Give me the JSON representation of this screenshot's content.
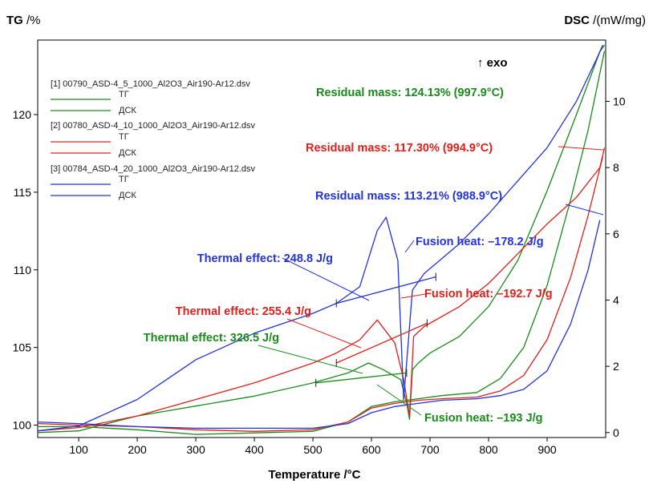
{
  "chart_data": {
    "type": "line",
    "y_left_title": "TG",
    "y_left_unit": " /%",
    "y_right_title": "DSC",
    "y_right_unit": " /(mW/mg)",
    "xlabel": "Temperature /°C",
    "xlim": [
      30,
      1000
    ],
    "ylim_left": [
      99.2,
      124.8
    ],
    "ylim_right": [
      -0.15,
      11.85
    ],
    "x_ticks": [
      100,
      200,
      300,
      400,
      500,
      600,
      700,
      800,
      900
    ],
    "y_left_ticks": [
      100,
      105,
      110,
      115,
      120
    ],
    "y_right_ticks": [
      0,
      2,
      4,
      6,
      8,
      10
    ],
    "exo_label": "↑ exo",
    "colors": {
      "green": "#1a8a1a",
      "red": "#e0201c",
      "blue": "#2233dd"
    },
    "legend": [
      {
        "file": "[1] 00790_ASD-4_5_1000_Al2O3_Air190-Ar12.dsv",
        "tg": "ТГ",
        "dsc": "ДСК",
        "color": "#1a8a1a"
      },
      {
        "file": "[2] 00780_ASD-4_10_1000_Al2O3_Air190-Ar12.dsv",
        "tg": "ТГ",
        "dsc": "ДСК",
        "color": "#e0201c"
      },
      {
        "file": "[3] 00784_ASD-4_20_1000_Al2O3_Air190-Ar12.dsv",
        "tg": "ТГ",
        "dsc": "ДСК",
        "color": "#2233dd"
      }
    ],
    "series": [
      {
        "name": "[1] TG",
        "axis": "left",
        "color": "#1a8a1a",
        "x": [
          30,
          100,
          200,
          300,
          400,
          500,
          560,
          600,
          640,
          660,
          680,
          720,
          780,
          820,
          860,
          900,
          940,
          970,
          998
        ],
        "y": [
          99.9,
          99.9,
          99.7,
          99.4,
          99.5,
          99.6,
          100.2,
          101.2,
          101.5,
          101.6,
          101.7,
          101.9,
          102.1,
          103.0,
          105.0,
          109.0,
          114.5,
          119.0,
          124.1
        ]
      },
      {
        "name": "[1] DSC",
        "axis": "right",
        "color": "#1a8a1a",
        "x": [
          30,
          100,
          200,
          300,
          400,
          500,
          560,
          595,
          620,
          650,
          660,
          665,
          670,
          680,
          700,
          750,
          800,
          850,
          900,
          950,
          990,
          998
        ],
        "y": [
          0.0,
          0.05,
          0.5,
          0.8,
          1.1,
          1.5,
          1.8,
          2.1,
          1.9,
          1.6,
          0.9,
          0.4,
          1.9,
          2.1,
          2.4,
          2.9,
          3.8,
          5.2,
          7.3,
          9.6,
          11.5,
          11.7
        ]
      },
      {
        "name": "[2] TG",
        "axis": "left",
        "color": "#e0201c",
        "x": [
          30,
          100,
          200,
          300,
          400,
          500,
          560,
          600,
          640,
          660,
          680,
          720,
          780,
          820,
          860,
          900,
          940,
          970,
          995
        ],
        "y": [
          100.1,
          100.0,
          99.9,
          99.7,
          99.6,
          99.7,
          100.2,
          101.1,
          101.4,
          101.5,
          101.6,
          101.7,
          101.8,
          102.2,
          103.2,
          105.5,
          109.5,
          113.5,
          117.3
        ]
      },
      {
        "name": "[2] DSC",
        "axis": "right",
        "color": "#e0201c",
        "x": [
          30,
          100,
          200,
          300,
          400,
          500,
          540,
          580,
          610,
          640,
          655,
          665,
          672,
          690,
          750,
          800,
          850,
          900,
          950,
          990,
          998
        ],
        "y": [
          0.05,
          0.15,
          0.5,
          1.0,
          1.5,
          2.1,
          2.4,
          2.8,
          3.4,
          2.7,
          1.6,
          0.5,
          2.9,
          3.2,
          3.8,
          4.5,
          5.4,
          6.3,
          7.1,
          8.0,
          8.6
        ]
      },
      {
        "name": "[3] TG",
        "axis": "left",
        "color": "#2233dd",
        "x": [
          30,
          100,
          200,
          300,
          400,
          500,
          560,
          600,
          640,
          660,
          680,
          720,
          780,
          820,
          860,
          900,
          940,
          970,
          990
        ],
        "y": [
          100.2,
          100.1,
          99.9,
          99.8,
          99.8,
          99.8,
          100.1,
          100.8,
          101.2,
          101.3,
          101.4,
          101.6,
          101.7,
          101.9,
          102.3,
          103.5,
          106.5,
          110.0,
          113.2
        ]
      },
      {
        "name": "[3] DSC",
        "axis": "right",
        "color": "#2233dd",
        "x": [
          30,
          100,
          200,
          250,
          300,
          400,
          500,
          540,
          580,
          610,
          625,
          645,
          655,
          670,
          690,
          750,
          800,
          850,
          900,
          950,
          985,
          995
        ],
        "y": [
          0.05,
          0.2,
          1.0,
          1.6,
          2.2,
          3.0,
          3.6,
          3.9,
          4.4,
          6.1,
          6.5,
          5.2,
          1.0,
          4.3,
          4.8,
          5.7,
          6.6,
          7.6,
          8.6,
          10.0,
          11.3,
          11.7
        ]
      }
    ],
    "baselines": [
      {
        "color": "#1a8a1a",
        "x": [
          505,
          660
        ],
        "y": [
          1.5,
          1.8
        ]
      },
      {
        "color": "#e0201c",
        "x": [
          540,
          695
        ],
        "y": [
          2.1,
          3.3
        ]
      },
      {
        "color": "#2233dd",
        "x": [
          540,
          710
        ],
        "y": [
          3.9,
          4.7
        ]
      }
    ],
    "annotations": [
      {
        "text": "Residual mass: 124.13% (997.9°C)",
        "color": "#1a8a1a"
      },
      {
        "text": "Residual mass: 117.30% (994.9°C)",
        "color": "#e0201c"
      },
      {
        "text": "Residual mass: 113.21% (988.9°C)",
        "color": "#2233dd"
      },
      {
        "text": "Thermal effect: 248.8 J/g",
        "color": "#2233dd"
      },
      {
        "text": "Fusion heat: –178.2 J/g",
        "color": "#2233dd"
      },
      {
        "text": "Fusion heat: –192.7 J/g",
        "color": "#e0201c"
      },
      {
        "text": "Thermal effect: 255.4 J/g",
        "color": "#e0201c"
      },
      {
        "text": "Thermal effect: 326.5 J/g",
        "color": "#1a8a1a"
      },
      {
        "text": "Fusion heat: –193 J/g",
        "color": "#1a8a1a"
      }
    ]
  }
}
